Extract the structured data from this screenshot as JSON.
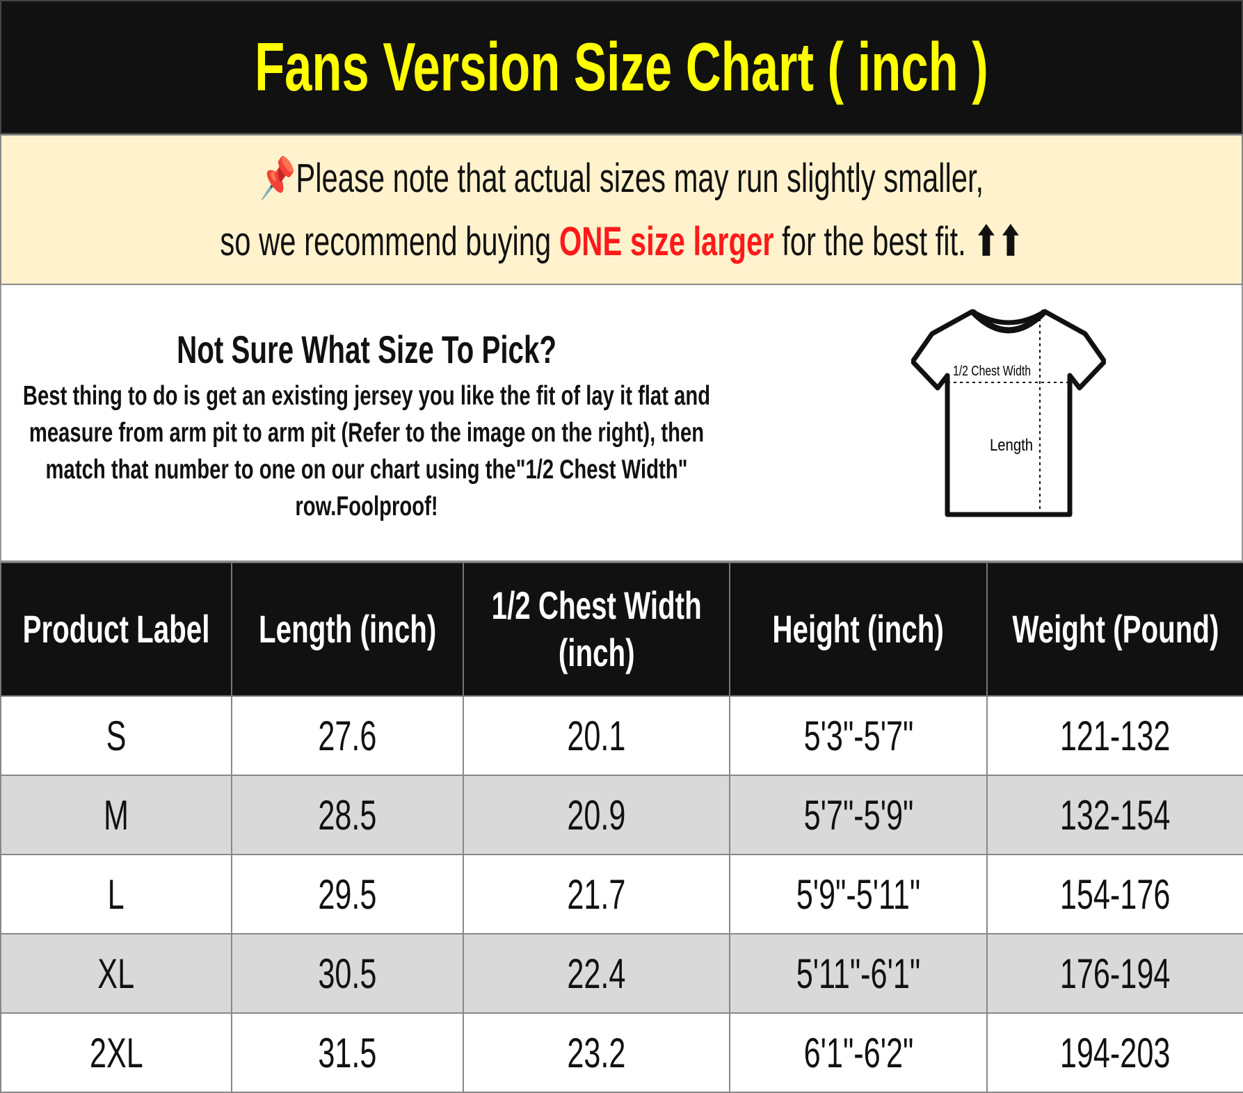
{
  "title": "Fans Version Size Chart ( inch )",
  "notice": {
    "pin_icon": "pushpin-icon",
    "line1": "Please note that actual sizes may run slightly smaller,",
    "line2_before": "so we recommend buying ",
    "line2_highlight": "ONE size larger",
    "line2_after": " for the best fit.",
    "arrows": "⬆⬆",
    "highlight_color": "#ff1a1a"
  },
  "info": {
    "heading": "Not Sure What Size To Pick?",
    "body": "Best thing to do is get an existing jersey you like the fit of lay it flat and measure from arm pit to arm pit (Refer to the image on the right), then match that number to one on our chart using the\"1/2 Chest Width\" row.Foolproof!",
    "diagram": {
      "chest_label": "1/2 Chest Width",
      "length_label": "Length"
    }
  },
  "table": {
    "headers": [
      "Product Label",
      "Length (inch)",
      "1/2 Chest Width (inch)",
      "Height (inch)",
      "Weight (Pound)"
    ],
    "rows": [
      [
        "S",
        "27.6",
        "20.1",
        "5'3\"-5'7\"",
        "121-132"
      ],
      [
        "M",
        "28.5",
        "20.9",
        "5'7\"-5'9\"",
        "132-154"
      ],
      [
        "L",
        "29.5",
        "21.7",
        "5'9\"-5'11\"",
        "154-176"
      ],
      [
        "XL",
        "30.5",
        "22.4",
        "5'11\"-6'1\"",
        "176-194"
      ],
      [
        "2XL",
        "31.5",
        "23.2",
        "6'1\"-6'2\"",
        "194-203"
      ]
    ]
  },
  "colors": {
    "title_bg": "#111111",
    "title_text": "#ffff00",
    "notice_bg": "#fff2cc",
    "alt_row": "#d9d9d9"
  }
}
